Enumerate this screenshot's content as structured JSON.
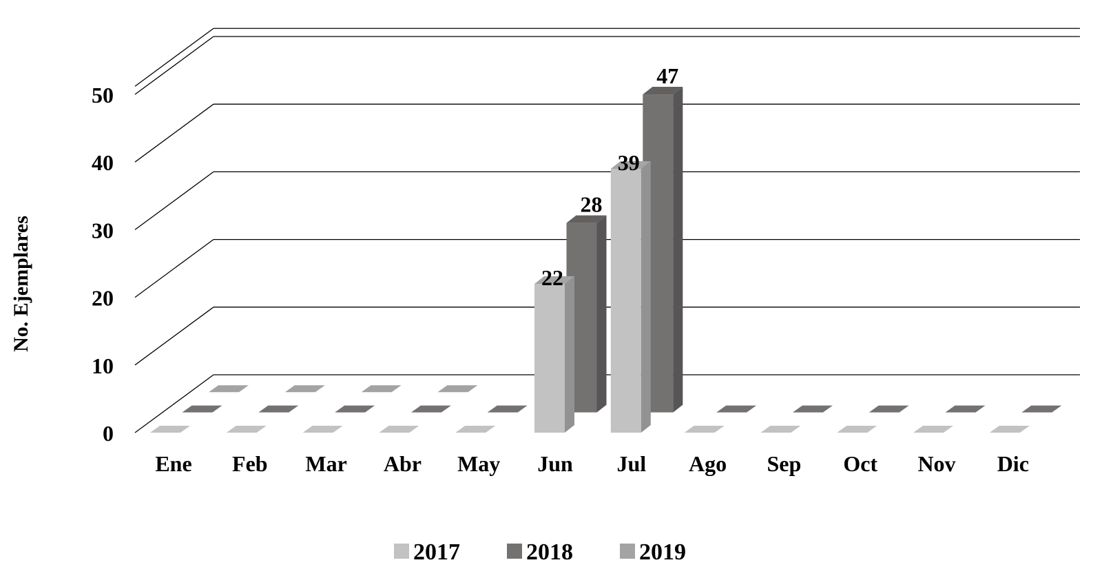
{
  "chart_data": {
    "type": "bar",
    "ylabel": "No. Ejemplares",
    "ylim": [
      0,
      50
    ],
    "yticks": [
      0,
      10,
      20,
      30,
      40,
      50
    ],
    "categories": [
      "Ene",
      "Feb",
      "Mar",
      "Abr",
      "May",
      "Jun",
      "Jul",
      "Ago",
      "Sep",
      "Oct",
      "Nov",
      "Dic"
    ],
    "series": [
      {
        "name": "2017",
        "color": "#c2c2c2",
        "values": [
          0,
          0,
          0,
          0,
          0,
          22,
          39,
          0,
          0,
          0,
          0,
          0
        ]
      },
      {
        "name": "2018",
        "color": "#747171",
        "values": [
          0,
          0,
          0,
          0,
          0,
          28,
          47,
          0,
          0,
          0,
          0,
          0
        ]
      },
      {
        "name": "2019",
        "color": "#a3a3a3",
        "values": [
          0,
          0,
          0,
          0,
          null,
          null,
          null,
          null,
          null,
          null,
          null,
          null
        ]
      }
    ],
    "legend_position": "bottom",
    "grid": true,
    "three_d": true
  }
}
